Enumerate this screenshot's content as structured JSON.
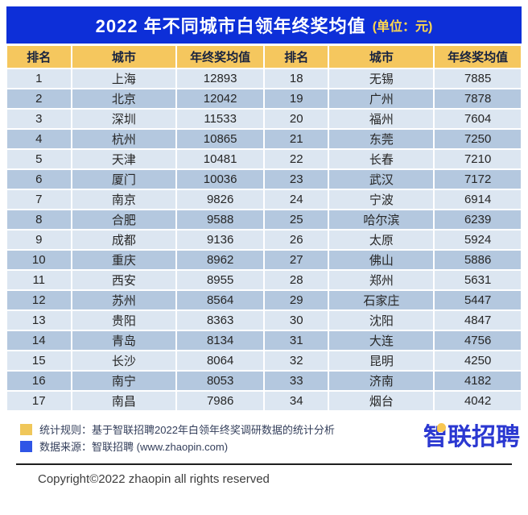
{
  "title": {
    "main": "2022 年不同城市白领年终奖均值",
    "unit": "(单位：元)"
  },
  "table": {
    "headers": [
      "排名",
      "城市",
      "年终奖均值",
      "排名",
      "城市",
      "年终奖均值"
    ],
    "rows": [
      {
        "cells": [
          "1",
          "上海",
          "12893",
          "18",
          "无锡",
          "7885"
        ]
      },
      {
        "cells": [
          "2",
          "北京",
          "12042",
          "19",
          "广州",
          "7878"
        ]
      },
      {
        "cells": [
          "3",
          "深圳",
          "11533",
          "20",
          "福州",
          "7604"
        ]
      },
      {
        "cells": [
          "4",
          "杭州",
          "10865",
          "21",
          "东莞",
          "7250"
        ]
      },
      {
        "cells": [
          "5",
          "天津",
          "10481",
          "22",
          "长春",
          "7210"
        ]
      },
      {
        "cells": [
          "6",
          "厦门",
          "10036",
          "23",
          "武汉",
          "7172"
        ]
      },
      {
        "cells": [
          "7",
          "南京",
          "9826",
          "24",
          "宁波",
          "6914"
        ]
      },
      {
        "cells": [
          "8",
          "合肥",
          "9588",
          "25",
          "哈尔滨",
          "6239"
        ]
      },
      {
        "cells": [
          "9",
          "成都",
          "9136",
          "26",
          "太原",
          "5924"
        ]
      },
      {
        "cells": [
          "10",
          "重庆",
          "8962",
          "27",
          "佛山",
          "5886"
        ]
      },
      {
        "cells": [
          "11",
          "西安",
          "8955",
          "28",
          "郑州",
          "5631"
        ]
      },
      {
        "cells": [
          "12",
          "苏州",
          "8564",
          "29",
          "石家庄",
          "5447"
        ]
      },
      {
        "cells": [
          "13",
          "贵阳",
          "8363",
          "30",
          "沈阳",
          "4847"
        ]
      },
      {
        "cells": [
          "14",
          "青岛",
          "8134",
          "31",
          "大连",
          "4756"
        ]
      },
      {
        "cells": [
          "15",
          "长沙",
          "8064",
          "32",
          "昆明",
          "4250"
        ]
      },
      {
        "cells": [
          "16",
          "南宁",
          "8053",
          "33",
          "济南",
          "4182"
        ]
      },
      {
        "cells": [
          "17",
          "南昌",
          "7986",
          "34",
          "烟台",
          "4042"
        ]
      }
    ]
  },
  "legend": {
    "items": [
      {
        "swatch": "#f0c75a",
        "label": "统计规则：基于智联招聘2022年白领年终奖调研数据的统计分析"
      },
      {
        "swatch": "#2f55e6",
        "label": "数据来源：智联招聘 (www.zhaopin.com)"
      }
    ]
  },
  "logo": {
    "text": "智联招聘"
  },
  "copyright": "Copyright©2022 zhaopin all rights reserved",
  "colors": {
    "banner_bg": "#0d2fd8",
    "banner_title": "#ffffff",
    "banner_unit": "#ffd84d",
    "header_bg": "#f5c75e",
    "header_text": "#17223f",
    "row_light": "#dce6f1",
    "row_dark": "#b4c8df",
    "cell_text": "#262626",
    "legend_yellow": "#f0c75a",
    "legend_blue": "#2f55e6",
    "logo_blue": "#2b38d1",
    "logo_yellow": "#f8c751",
    "divider": "#1f1f1f"
  },
  "chart_data": {
    "type": "table",
    "title": "2022 年不同城市白领年终奖均值 (单位：元)",
    "columns": [
      "排名",
      "城市",
      "年终奖均值"
    ],
    "rows": [
      [
        1,
        "上海",
        12893
      ],
      [
        2,
        "北京",
        12042
      ],
      [
        3,
        "深圳",
        11533
      ],
      [
        4,
        "杭州",
        10865
      ],
      [
        5,
        "天津",
        10481
      ],
      [
        6,
        "厦门",
        10036
      ],
      [
        7,
        "南京",
        9826
      ],
      [
        8,
        "合肥",
        9588
      ],
      [
        9,
        "成都",
        9136
      ],
      [
        10,
        "重庆",
        8962
      ],
      [
        11,
        "西安",
        8955
      ],
      [
        12,
        "苏州",
        8564
      ],
      [
        13,
        "贵阳",
        8363
      ],
      [
        14,
        "青岛",
        8134
      ],
      [
        15,
        "长沙",
        8064
      ],
      [
        16,
        "南宁",
        8053
      ],
      [
        17,
        "南昌",
        7986
      ],
      [
        18,
        "无锡",
        7885
      ],
      [
        19,
        "广州",
        7878
      ],
      [
        20,
        "福州",
        7604
      ],
      [
        21,
        "东莞",
        7250
      ],
      [
        22,
        "长春",
        7210
      ],
      [
        23,
        "武汉",
        7172
      ],
      [
        24,
        "宁波",
        6914
      ],
      [
        25,
        "哈尔滨",
        6239
      ],
      [
        26,
        "太原",
        5924
      ],
      [
        27,
        "佛山",
        5886
      ],
      [
        28,
        "郑州",
        5631
      ],
      [
        29,
        "石家庄",
        5447
      ],
      [
        30,
        "沈阳",
        4847
      ],
      [
        31,
        "大连",
        4756
      ],
      [
        32,
        "昆明",
        4250
      ],
      [
        33,
        "济南",
        4182
      ],
      [
        34,
        "烟台",
        4042
      ]
    ]
  }
}
